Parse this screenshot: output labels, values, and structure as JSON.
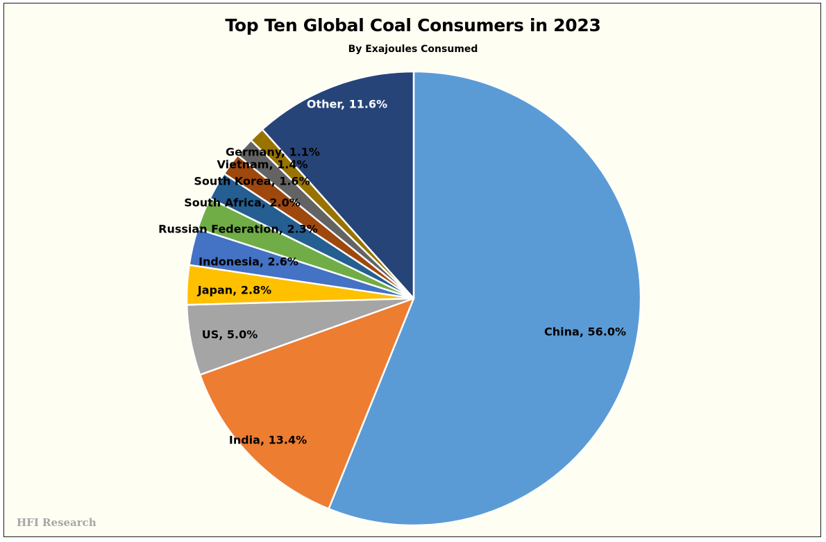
{
  "chart_data": {
    "type": "pie",
    "title": "Top Ten Global Coal Consumers in 2023",
    "subtitle": "By Exajoules Consumed",
    "slices": [
      {
        "label": "China",
        "value": 56.0,
        "display": "China, 56.0%",
        "color": "#5b9bd5",
        "label_color": "#000000"
      },
      {
        "label": "India",
        "value": 13.4,
        "display": "India, 13.4%",
        "color": "#ed7d31",
        "label_color": "#000000"
      },
      {
        "label": "US",
        "value": 5.0,
        "display": "US, 5.0%",
        "color": "#a5a5a5",
        "label_color": "#000000"
      },
      {
        "label": "Japan",
        "value": 2.8,
        "display": "Japan, 2.8%",
        "color": "#ffc000",
        "label_color": "#000000"
      },
      {
        "label": "Indonesia",
        "value": 2.6,
        "display": "Indonesia, 2.6%",
        "color": "#4472c4",
        "label_color": "#000000"
      },
      {
        "label": "Russian Federation",
        "value": 2.3,
        "display": "Russian Federation, 2.3%",
        "color": "#70ad47",
        "label_color": "#000000"
      },
      {
        "label": "South Africa",
        "value": 2.0,
        "display": "South Africa, 2.0%",
        "color": "#255e91",
        "label_color": "#000000"
      },
      {
        "label": "South Korea",
        "value": 1.6,
        "display": "South Korea, 1.6%",
        "color": "#9e480e",
        "label_color": "#000000"
      },
      {
        "label": "Vietnam",
        "value": 1.4,
        "display": "Vietnam, 1.4%",
        "color": "#636363",
        "label_color": "#000000"
      },
      {
        "label": "Germany",
        "value": 1.1,
        "display": "Germany, 1.1%",
        "color": "#997300",
        "label_color": "#000000"
      },
      {
        "label": "Other",
        "value": 11.6,
        "display": "Other, 11.6%",
        "color": "#264478",
        "label_color": "#ffffff"
      }
    ],
    "start_angle": "12 o'clock",
    "direction": "clockwise",
    "legend": "none"
  },
  "watermark": "HFI Research"
}
